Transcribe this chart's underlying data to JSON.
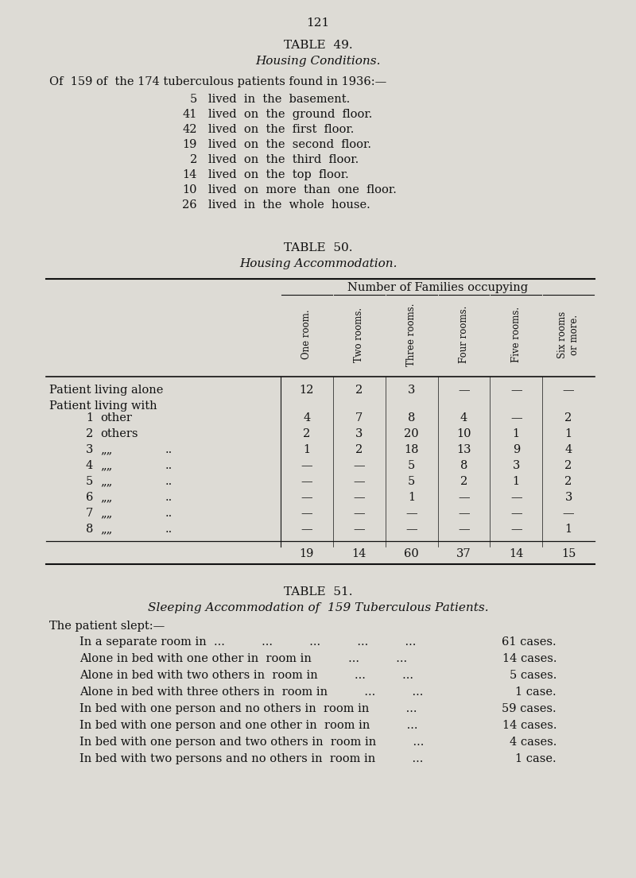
{
  "page_number": "121",
  "bg_color": "#dddbd5",
  "table49_title": "TABLE  49.",
  "table49_subtitle": "Housing Conditions.",
  "table49_intro": "Of  159 of  the 174 tuberculous patients found in 1936:—",
  "table49_rows": [
    [
      "5",
      "lived  in  the  basement."
    ],
    [
      "41",
      "lived  on  the  ground  floor."
    ],
    [
      "42",
      "lived  on  the  first  floor."
    ],
    [
      "19",
      "lived  on  the  second  floor."
    ],
    [
      "2",
      "lived  on  the  third  floor."
    ],
    [
      "14",
      "lived  on  the  top  floor."
    ],
    [
      "10",
      "lived  on  more  than  one  floor."
    ],
    [
      "26",
      "lived  in  the  whole  house."
    ]
  ],
  "table50_title": "TABLE  50.",
  "table50_subtitle": "Housing Accommodation.",
  "table50_header_main": "Number of Families occupying",
  "table50_col_headers": [
    "One room.",
    "Two rooms.",
    "Three rooms.",
    "Four rooms.",
    "Five rooms.",
    "Six rooms\nor more."
  ],
  "table50_data": [
    [
      "Patient living alone",
      "12",
      "2",
      "3",
      "—",
      "—",
      "—"
    ],
    [
      "Patient living with",
      "",
      "",
      "",
      "",
      "",
      ""
    ],
    [
      "1 other",
      "4",
      "7",
      "8",
      "4",
      "—",
      "2"
    ],
    [
      "2 others",
      "2",
      "3",
      "20",
      "10",
      "1",
      "1"
    ],
    [
      "3 „„",
      "1",
      "2",
      "18",
      "13",
      "9",
      "4"
    ],
    [
      "4 „„",
      "—",
      "—",
      "5",
      "8",
      "3",
      "2"
    ],
    [
      "5 „„",
      "—",
      "—",
      "5",
      "2",
      "1",
      "2"
    ],
    [
      "6 „„",
      "—",
      "—",
      "1",
      "—",
      "—",
      "3"
    ],
    [
      "7 „„",
      "—",
      "—",
      "—",
      "—",
      "—",
      "—"
    ],
    [
      "8 „„",
      "—",
      "—",
      "—",
      "—",
      "—",
      "1"
    ]
  ],
  "table50_totals": [
    "19",
    "14",
    "60",
    "37",
    "14",
    "15"
  ],
  "table51_title": "TABLE  51.",
  "table51_subtitle": "Sleeping Accommodation of  159 Tuberculous Patients.",
  "table51_intro": "The patient slept:—",
  "table51_rows": [
    [
      "In a separate room in  ...          ...          ...          ...          ...",
      "61 cases."
    ],
    [
      "Alone in bed with one other in  room in          ...          ...",
      "14 cases."
    ],
    [
      "Alone in bed with two others in  room in          ...          ...",
      "5 cases."
    ],
    [
      "Alone in bed with three others in  room in          ...          ...",
      "1 case."
    ],
    [
      "In bed with one person and no others in  room in          ...",
      "59 cases."
    ],
    [
      "In bed with one person and one other in  room in          ...",
      "14 cases."
    ],
    [
      "In bed with one person and two others in  room in          ...",
      "4 cases."
    ],
    [
      "In bed with two persons and no others in  room in          ...",
      "1 case."
    ]
  ]
}
